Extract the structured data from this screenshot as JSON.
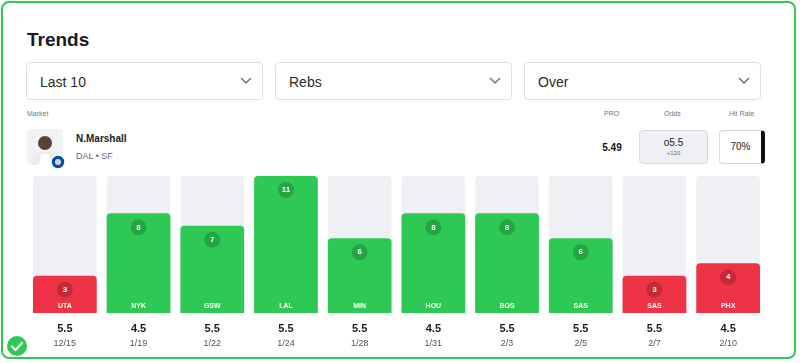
{
  "header": {
    "title": "Trends",
    "filters": [
      "Last 10",
      "Rebs",
      "Over"
    ],
    "columns": {
      "market": "Market",
      "pro": "PRO",
      "odds": "Odds",
      "hit_rate": "Hit Rate"
    },
    "player": {
      "name": "N.Marshall",
      "team": "DAL • SF",
      "pro": 5.49,
      "odds_line": "o5.5",
      "odds_price": "+120",
      "hit_rate": "70%"
    }
  },
  "chart_data": {
    "type": "bar",
    "categories": [
      "UTA",
      "NYK",
      "GSW",
      "LAL",
      "MIN",
      "HOU",
      "BOS",
      "SAS",
      "SAS",
      "PHX"
    ],
    "values": [
      3,
      8,
      7,
      11,
      6,
      8,
      8,
      6,
      3,
      4
    ],
    "colors": [
      "#ef3347",
      "#2ec955",
      "#2ec955",
      "#2ec955",
      "#2ec955",
      "#2ec955",
      "#2ec955",
      "#2ec955",
      "#ef3347",
      "#ef3347"
    ],
    "lines": [
      5.5,
      4.5,
      5.5,
      5.5,
      5.5,
      4.5,
      5.5,
      5.5,
      5.5,
      4.5
    ],
    "dates": [
      "12/15",
      "1/19",
      "1/22",
      "1/24",
      "1/28",
      "1/31",
      "2/3",
      "2/5",
      "2/7",
      "2/10"
    ],
    "ylim": [
      0,
      11
    ],
    "data_labels": true,
    "grid": false
  }
}
